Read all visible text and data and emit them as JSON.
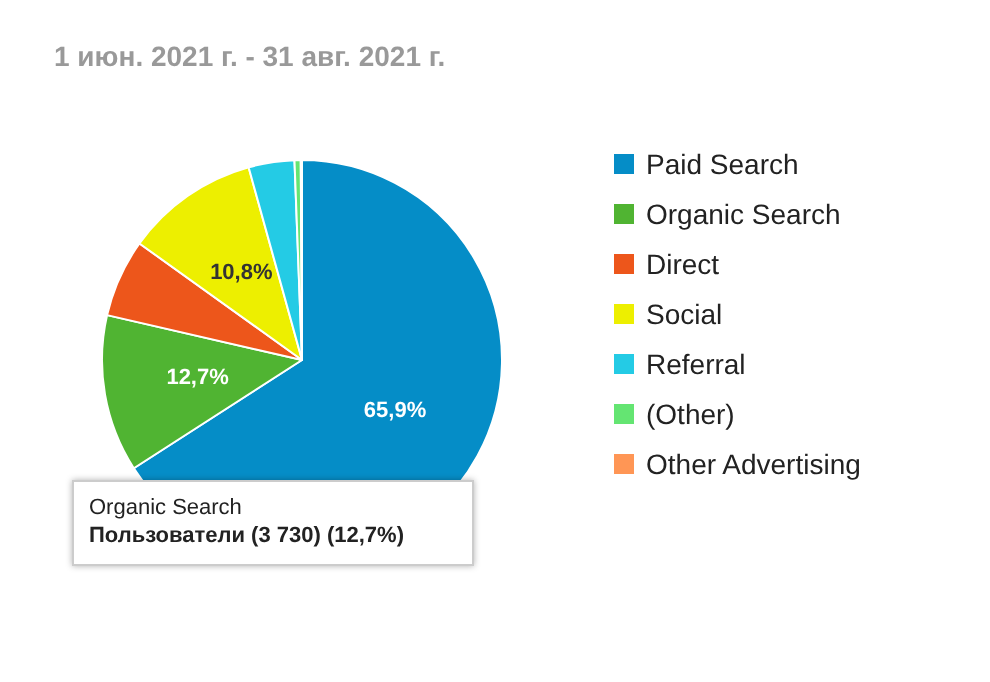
{
  "chart_data": {
    "type": "pie",
    "title": "1 июн. 2021 г. - 31 авг. 2021 г.",
    "categories": [
      "Paid Search",
      "Organic Search",
      "Direct",
      "Social",
      "Referral",
      "(Other)",
      "Other Advertising"
    ],
    "values": [
      65.9,
      12.7,
      6.3,
      10.8,
      3.7,
      0.5,
      0.1
    ],
    "colors": [
      "#058dc7",
      "#50b432",
      "#ed561b",
      "#edef00",
      "#24cbe5",
      "#64e572",
      "#ff9655"
    ],
    "value_labels": [
      "65,9%",
      "12,7%",
      null,
      "10,8%",
      null,
      null,
      null
    ],
    "legend": "right",
    "annotations": [
      "Organic Search\nПользователи (3 730) (12,7%)"
    ]
  }
}
